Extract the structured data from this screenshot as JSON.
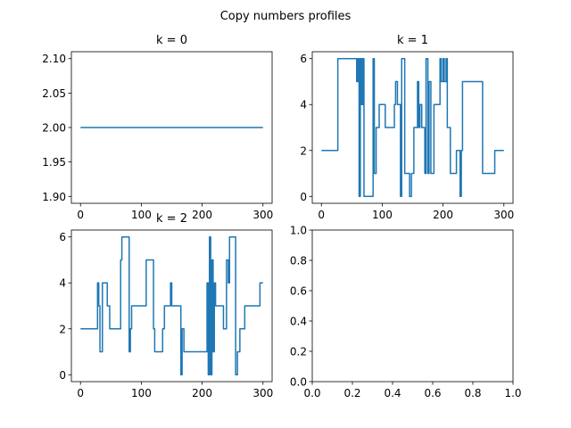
{
  "figure": {
    "title": "Copy numbers profiles"
  },
  "chart_data": [
    {
      "type": "line",
      "title": "k = 0",
      "xlim": [
        -15,
        315
      ],
      "ylim": [
        1.89,
        2.11
      ],
      "xticks": [
        0,
        100,
        200,
        300
      ],
      "yticks": [
        1.9,
        1.95,
        2.0,
        2.05,
        2.1
      ],
      "ytick_labels": [
        "1.90",
        "1.95",
        "2.00",
        "2.05",
        "2.10"
      ],
      "series": [
        {
          "x": [
            0,
            300
          ],
          "y": [
            2,
            2
          ]
        }
      ]
    },
    {
      "type": "line",
      "title": "k = 1",
      "xlim": [
        -15,
        315
      ],
      "ylim": [
        -0.3,
        6.3
      ],
      "xticks": [
        0,
        100,
        200,
        300
      ],
      "yticks": [
        0,
        2,
        4,
        6
      ],
      "ytick_labels": [
        "0",
        "2",
        "4",
        "6"
      ],
      "series": [
        {
          "x": [
            0,
            27,
            27,
            58,
            58,
            60,
            60,
            62,
            62,
            64,
            64,
            66,
            66,
            68,
            68,
            70,
            70,
            85,
            85,
            87,
            87,
            90,
            90,
            95,
            95,
            105,
            105,
            120,
            120,
            122,
            122,
            125,
            125,
            130,
            130,
            132,
            132,
            137,
            137,
            145,
            145,
            148,
            148,
            152,
            152,
            158,
            158,
            160,
            160,
            162,
            162,
            165,
            165,
            170,
            170,
            172,
            172,
            175,
            175,
            177,
            177,
            180,
            180,
            185,
            185,
            195,
            195,
            197,
            197,
            200,
            200,
            202,
            202,
            205,
            205,
            207,
            207,
            212,
            212,
            222,
            222,
            228,
            228,
            230,
            230,
            232,
            232,
            235,
            235,
            265,
            265,
            285,
            285,
            292,
            292,
            300
          ],
          "y": [
            2,
            2,
            6,
            6,
            5,
            5,
            6,
            6,
            0,
            0,
            6,
            6,
            4,
            4,
            6,
            6,
            0,
            0,
            6,
            6,
            1,
            1,
            3,
            3,
            4,
            4,
            3,
            3,
            4,
            4,
            5,
            5,
            4,
            4,
            0,
            0,
            6,
            6,
            1,
            1,
            0,
            0,
            1,
            1,
            3,
            3,
            5,
            5,
            3,
            3,
            4,
            4,
            3,
            3,
            1,
            1,
            6,
            6,
            1,
            1,
            5,
            5,
            1,
            1,
            4,
            4,
            6,
            6,
            5,
            5,
            6,
            6,
            5,
            5,
            6,
            6,
            3,
            3,
            1,
            1,
            2,
            2,
            0,
            0,
            2,
            2,
            5,
            5,
            5,
            5,
            1,
            1,
            2,
            2,
            2,
            2
          ]
        }
      ]
    },
    {
      "type": "line",
      "title": "k = 2",
      "xlim": [
        -15,
        315
      ],
      "ylim": [
        -0.3,
        6.3
      ],
      "xticks": [
        0,
        100,
        200,
        300
      ],
      "yticks": [
        0,
        2,
        4,
        6
      ],
      "ytick_labels": [
        "0",
        "2",
        "4",
        "6"
      ],
      "series": [
        {
          "x": [
            0,
            28,
            28,
            30,
            30,
            32,
            32,
            36,
            36,
            44,
            44,
            48,
            48,
            66,
            66,
            68,
            68,
            70,
            70,
            80,
            80,
            82,
            82,
            84,
            84,
            86,
            86,
            108,
            108,
            115,
            115,
            120,
            120,
            122,
            122,
            125,
            125,
            135,
            135,
            138,
            138,
            148,
            148,
            150,
            150,
            152,
            152,
            165,
            165,
            167,
            167,
            170,
            170,
            205,
            205,
            208,
            208,
            210,
            210,
            212,
            212,
            214,
            214,
            216,
            216,
            218,
            218,
            220,
            220,
            222,
            222,
            225,
            225,
            235,
            235,
            238,
            238,
            240,
            240,
            243,
            243,
            245,
            245,
            250,
            250,
            255,
            255,
            258,
            258,
            262,
            262,
            267,
            267,
            270,
            270,
            275,
            275,
            295,
            295,
            300
          ],
          "y": [
            2,
            2,
            4,
            4,
            3,
            3,
            1,
            1,
            4,
            4,
            3,
            3,
            2,
            2,
            5,
            5,
            6,
            6,
            6,
            6,
            1,
            1,
            2,
            2,
            3,
            3,
            3,
            3,
            5,
            5,
            5,
            5,
            2,
            2,
            1,
            1,
            1,
            1,
            2,
            2,
            3,
            3,
            4,
            4,
            3,
            3,
            3,
            3,
            0,
            0,
            2,
            2,
            1,
            1,
            1,
            1,
            4,
            4,
            0,
            0,
            6,
            6,
            0,
            0,
            5,
            5,
            1,
            1,
            4,
            4,
            3,
            3,
            3,
            3,
            2,
            2,
            2,
            2,
            5,
            5,
            4,
            4,
            6,
            6,
            6,
            6,
            0,
            0,
            1,
            1,
            2,
            2,
            2,
            2,
            3,
            3,
            3,
            3,
            4,
            4
          ]
        }
      ]
    },
    {
      "type": "line",
      "title": "",
      "xlim": [
        0,
        1
      ],
      "ylim": [
        0,
        1
      ],
      "xticks": [
        0,
        0.2,
        0.4,
        0.6,
        0.8,
        1.0
      ],
      "xtick_labels": [
        "0.0",
        "0.2",
        "0.4",
        "0.6",
        "0.8",
        "1.0"
      ],
      "yticks": [
        0,
        0.2,
        0.4,
        0.6,
        0.8,
        1.0
      ],
      "ytick_labels": [
        "0.0",
        "0.2",
        "0.4",
        "0.6",
        "0.8",
        "1.0"
      ],
      "series": []
    }
  ]
}
